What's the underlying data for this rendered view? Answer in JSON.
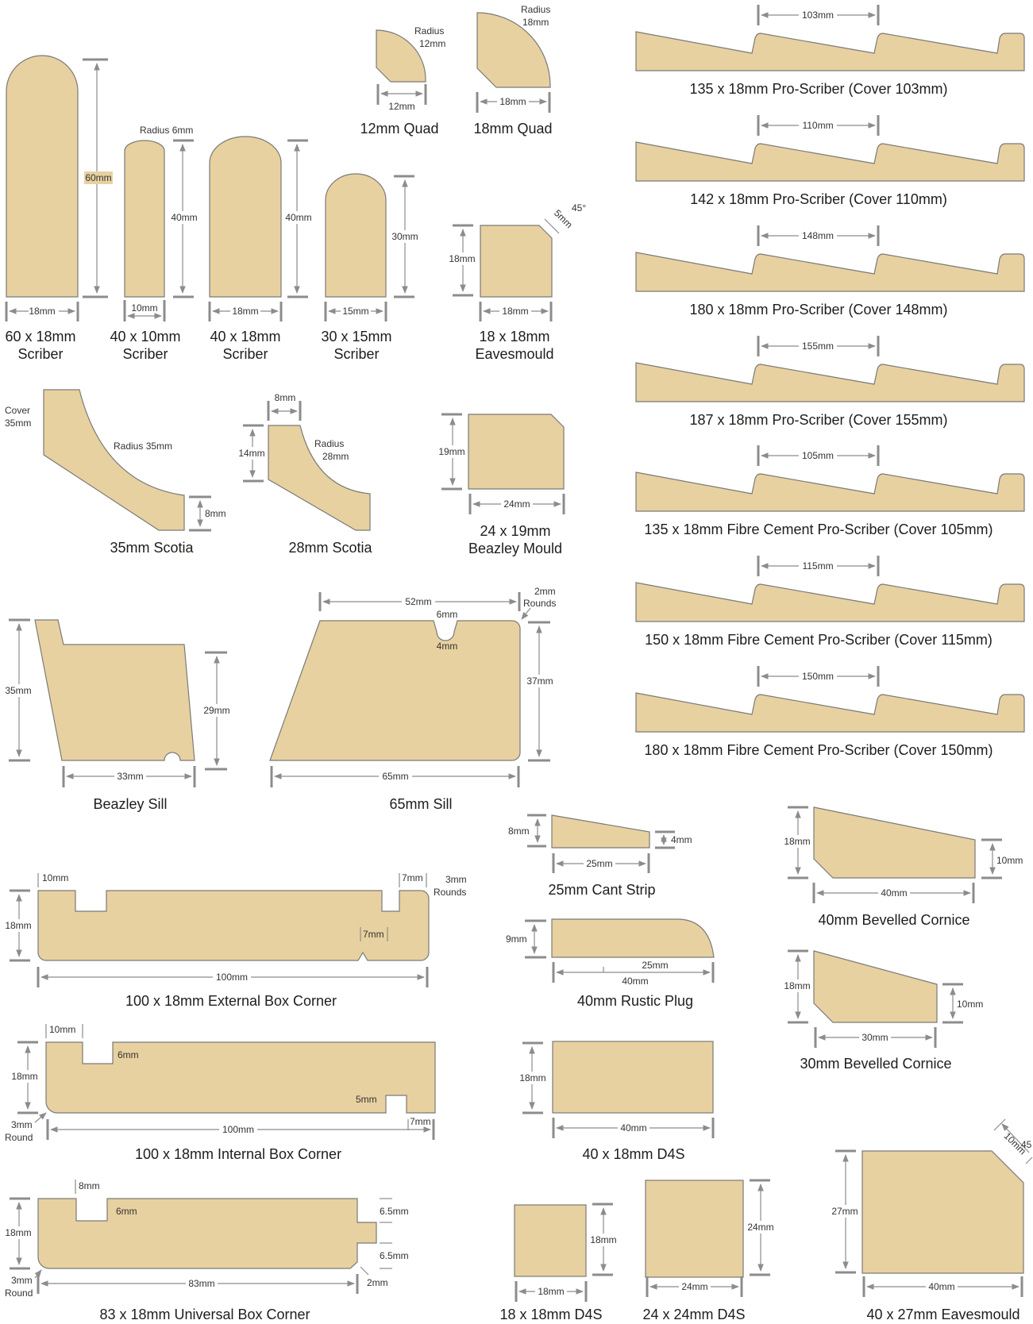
{
  "colors": {
    "profile_fill": "#e8d1a0",
    "profile_stroke": "#7a7a7a",
    "dimension_line": "#8c8c8c",
    "text": "#1d1d1b"
  },
  "profiles": {
    "scriber60": {
      "line1": "60 x 18mm",
      "line2": "Scriber",
      "dim_w": "18mm",
      "dim_h": "60mm"
    },
    "scriber40x10": {
      "line1": "40 x 10mm",
      "line2": "Scriber",
      "dim_w": "10mm",
      "dim_h": "40mm",
      "radius": "Radius 6mm"
    },
    "scriber40x18": {
      "line1": "40 x 18mm",
      "line2": "Scriber",
      "dim_w": "18mm",
      "dim_h": "40mm"
    },
    "scriber30x15": {
      "line1": "30 x 15mm",
      "line2": "Scriber",
      "dim_w": "15mm",
      "dim_h": "30mm"
    },
    "quad12": {
      "caption": "12mm Quad",
      "radius_1": "Radius",
      "radius_2": "12mm",
      "dim_w": "12mm"
    },
    "quad18": {
      "caption": "18mm Quad",
      "radius_1": "Radius",
      "radius_2": "18mm",
      "dim_w": "18mm"
    },
    "eaves18": {
      "line1": "18 x 18mm",
      "line2": "Eavesmould",
      "dim_w": "18mm",
      "dim_h": "18mm",
      "chamfer": "5mm",
      "angle": "45°"
    },
    "scotia35": {
      "caption": "35mm Scotia",
      "cover_1": "Cover",
      "cover_2": "35mm",
      "radius": "Radius 35mm",
      "dim_h": "8mm"
    },
    "scotia28": {
      "caption": "28mm Scotia",
      "dim_w": "8mm",
      "dim_h": "14mm",
      "radius_1": "Radius",
      "radius_2": "28mm"
    },
    "beazley_mould": {
      "line1": "24 x 19mm",
      "line2": "Beazley Mould",
      "dim_w": "24mm",
      "dim_h": "19mm"
    },
    "beazley_sill": {
      "caption": "Beazley Sill",
      "dim_h1": "35mm",
      "dim_h2": "29mm",
      "dim_w": "33mm"
    },
    "sill65": {
      "caption": "65mm Sill",
      "dim_top": "52mm",
      "groove_w": "6mm",
      "groove_d": "4mm",
      "rounds_1": "2mm",
      "rounds_2": "Rounds",
      "dim_h": "37mm",
      "dim_w": "65mm"
    },
    "cant": {
      "caption": "25mm Cant Strip",
      "dim_h1": "8mm",
      "dim_h2": "4mm",
      "dim_w": "25mm"
    },
    "plug": {
      "caption": "40mm Rustic Plug",
      "dim_h": "9mm",
      "dim_r": "25mm",
      "dim_w": "40mm"
    },
    "d4s40": {
      "caption": "40 x 18mm D4S",
      "dim_h": "18mm",
      "dim_w": "40mm"
    },
    "d4s18": {
      "caption": "18 x 18mm D4S",
      "dim_h": "18mm",
      "dim_w": "18mm"
    },
    "d4s24": {
      "caption": "24 x 24mm D4S",
      "dim_h": "24mm",
      "dim_w": "24mm"
    },
    "cornice40": {
      "caption": "40mm Bevelled Cornice",
      "dim_h1": "18mm",
      "dim_h2": "10mm",
      "dim_w": "40mm"
    },
    "cornice30": {
      "caption": "30mm Bevelled Cornice",
      "dim_h1": "18mm",
      "dim_h2": "10mm",
      "dim_w": "30mm"
    },
    "eaves40": {
      "caption": "40 x 27mm Eavesmould",
      "dim_h": "27mm",
      "dim_w": "40mm",
      "chamfer": "10mm",
      "angle": "45"
    },
    "ext_box": {
      "caption": "100 x 18mm External Box Corner",
      "dim_left": "10mm",
      "dim_right": "7mm",
      "rounds_1": "3mm",
      "rounds_2": "Rounds",
      "dim_h": "18mm",
      "dim_v": "7mm",
      "dim_w": "100mm"
    },
    "int_box": {
      "caption": "100 x 18mm Internal Box Corner",
      "dim_left": "10mm",
      "dim_groove": "6mm",
      "dim_h": "18mm",
      "dim_5": "5mm",
      "round_1": "3mm",
      "round_2": "Round",
      "dim_w": "100mm",
      "dim_7": "7mm"
    },
    "uni_box": {
      "caption": "83 x 18mm Universal Box Corner",
      "dim_left": "8mm",
      "dim_groove": "6mm",
      "dim_h": "18mm",
      "tongue_1": "6.5mm",
      "tongue_2": "6.5mm",
      "round_1": "3mm",
      "round_2": "Round",
      "dim_w": "83mm",
      "dim_c": "2mm"
    }
  },
  "pro_scribers": [
    {
      "caption": "135 x 18mm Pro-Scriber (Cover 103mm)",
      "cover": "103mm"
    },
    {
      "caption": "142 x 18mm Pro-Scriber (Cover 110mm)",
      "cover": "110mm"
    },
    {
      "caption": "180 x 18mm Pro-Scriber (Cover 148mm)",
      "cover": "148mm"
    },
    {
      "caption": "187 x 18mm Pro-Scriber (Cover 155mm)",
      "cover": "155mm"
    },
    {
      "caption": "135 x 18mm Fibre Cement Pro-Scriber (Cover 105mm)",
      "cover": "105mm"
    },
    {
      "caption": "150 x 18mm Fibre Cement Pro-Scriber (Cover 115mm)",
      "cover": "115mm"
    },
    {
      "caption": "180 x 18mm Fibre Cement Pro-Scriber (Cover 150mm)",
      "cover": "150mm"
    }
  ]
}
